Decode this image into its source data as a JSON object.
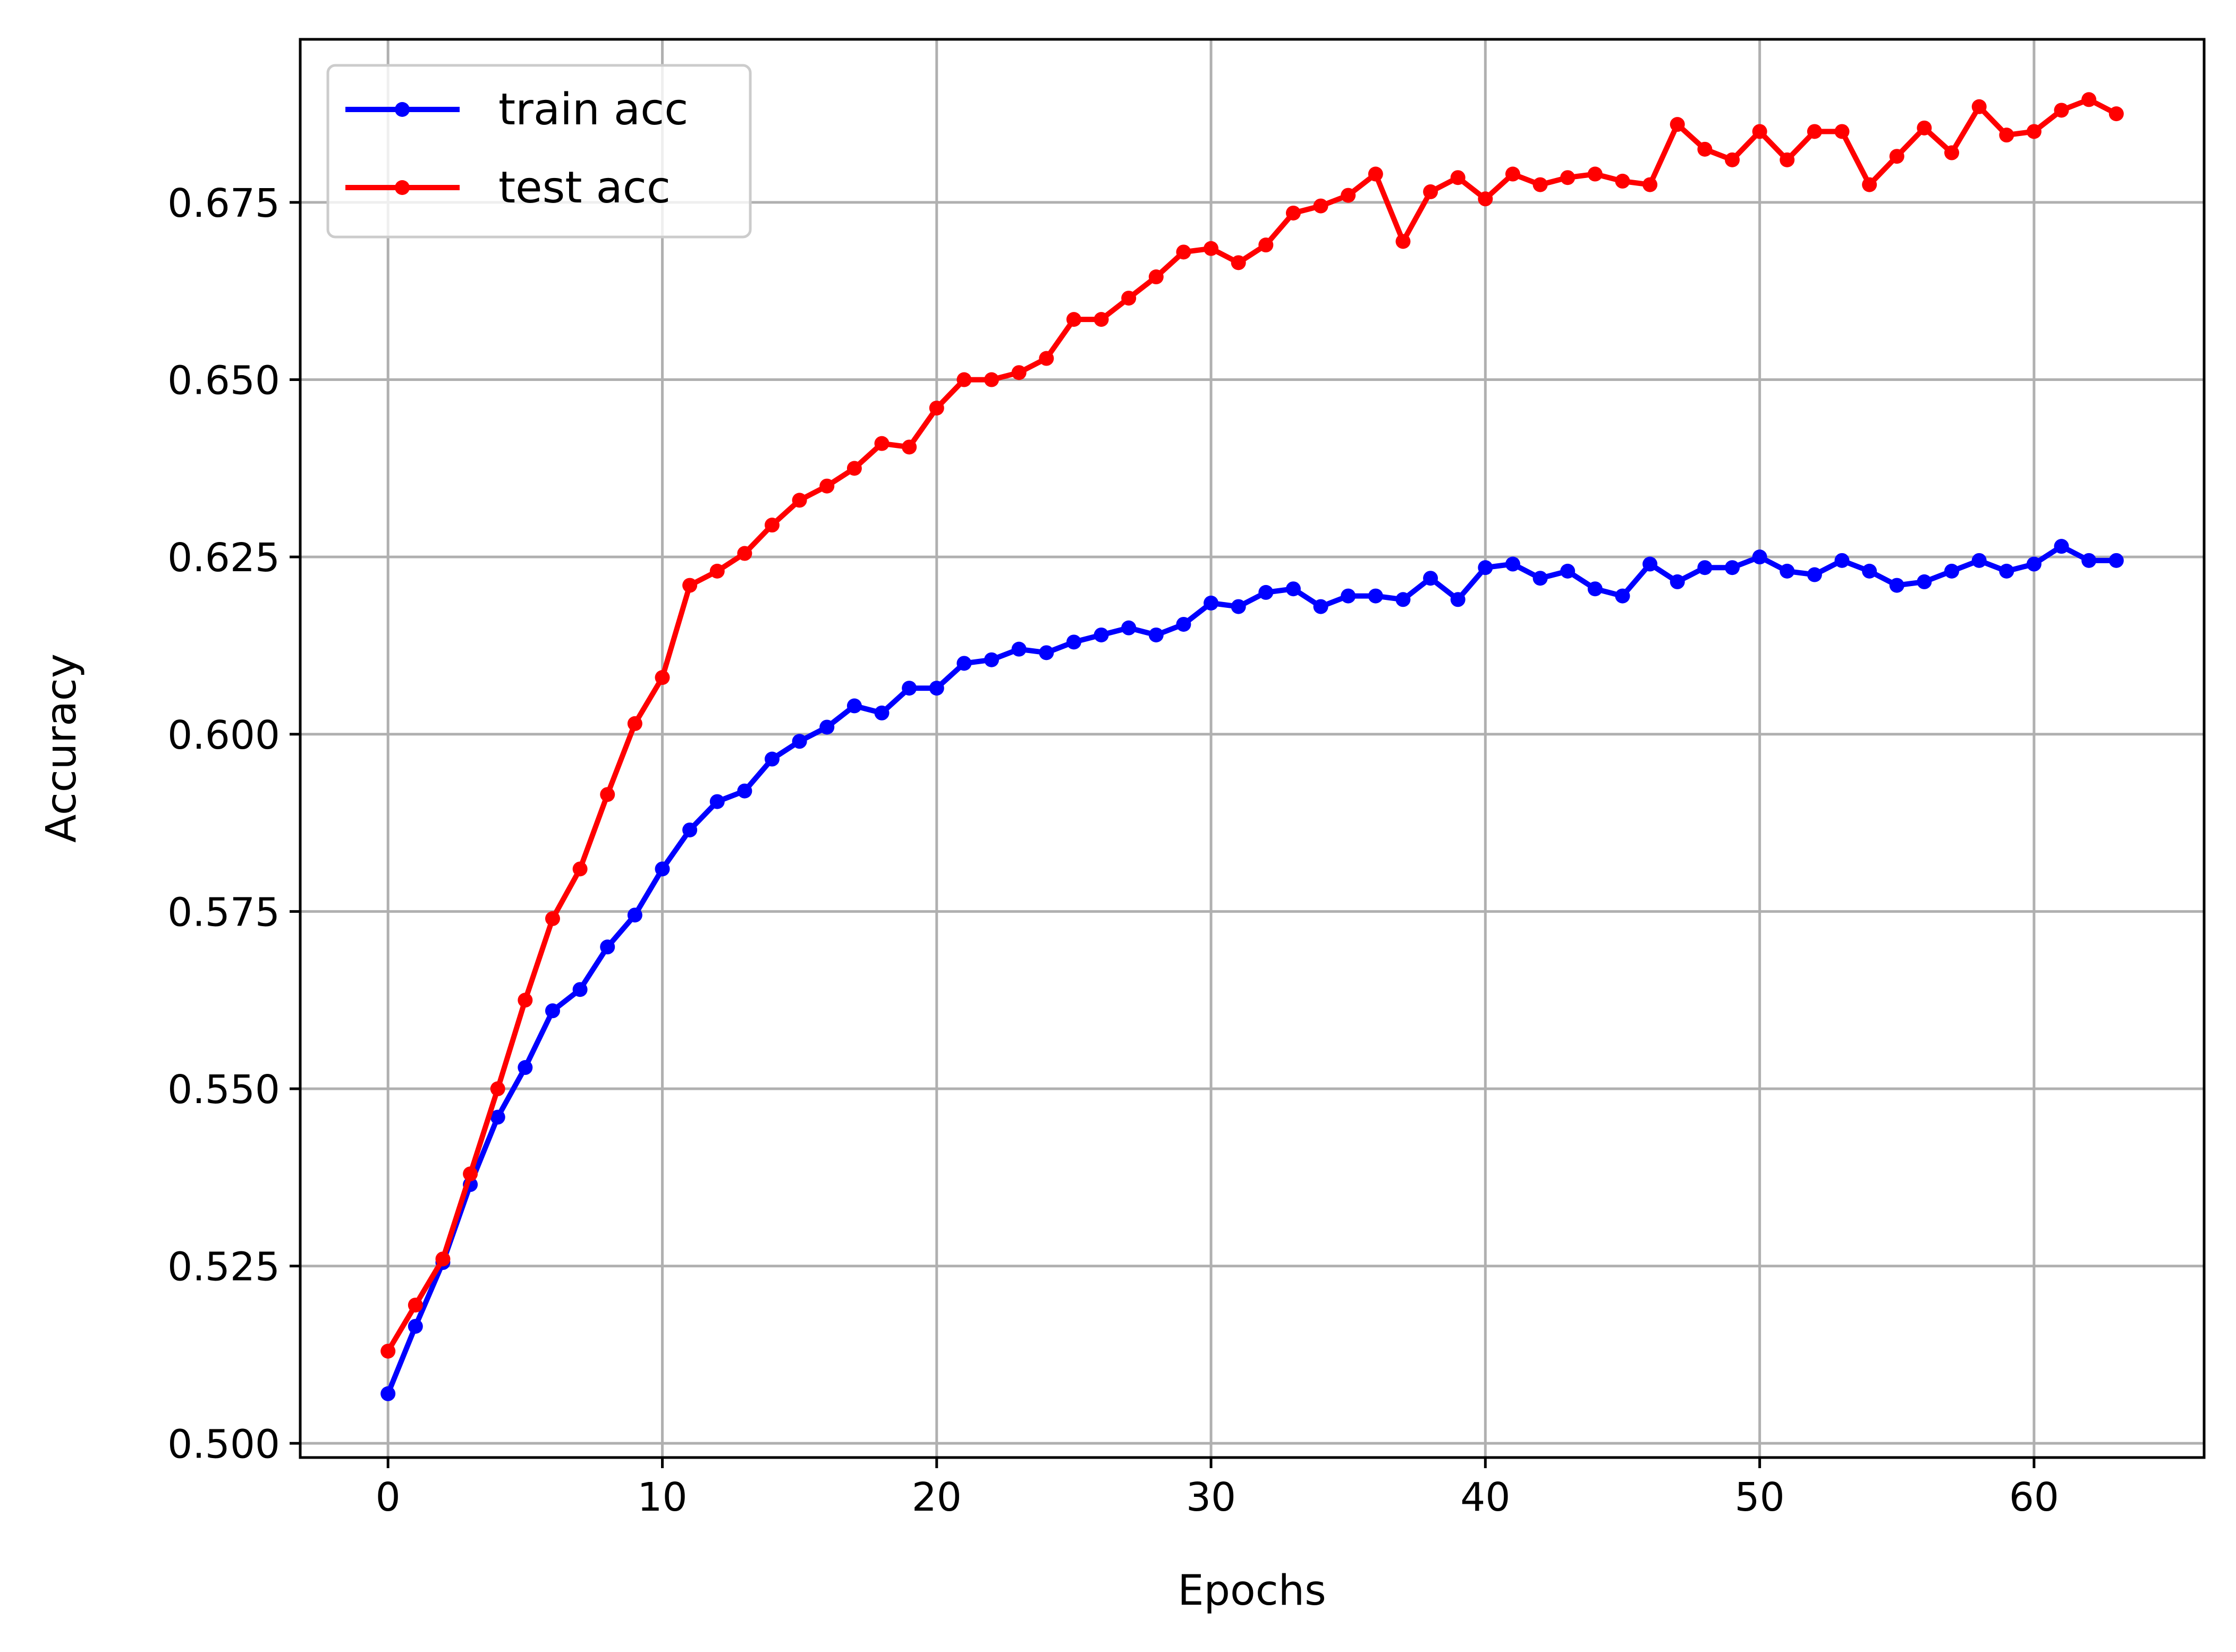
{
  "chart_data": {
    "type": "line",
    "xlabel": "Epochs",
    "ylabel": "Accuracy",
    "xlim": [
      -3.2,
      66.2
    ],
    "ylim": [
      0.498,
      0.698
    ],
    "x_ticks": [
      0,
      10,
      20,
      30,
      40,
      50,
      60
    ],
    "y_ticks": [
      0.5,
      0.525,
      0.55,
      0.575,
      0.6,
      0.625,
      0.65,
      0.675
    ],
    "x_tick_labels": [
      "0",
      "10",
      "20",
      "30",
      "40",
      "50",
      "60"
    ],
    "y_tick_labels": [
      "0.500",
      "0.525",
      "0.550",
      "0.575",
      "0.600",
      "0.625",
      "0.650",
      "0.675"
    ],
    "grid": true,
    "legend_position": "upper-left",
    "x": [
      0,
      1,
      2,
      3,
      4,
      5,
      6,
      7,
      8,
      9,
      10,
      11,
      12,
      13,
      14,
      15,
      16,
      17,
      18,
      19,
      20,
      21,
      22,
      23,
      24,
      25,
      26,
      27,
      28,
      29,
      30,
      31,
      32,
      33,
      34,
      35,
      36,
      37,
      38,
      39,
      40,
      41,
      42,
      43,
      44,
      45,
      46,
      47,
      48,
      49,
      50,
      51,
      52,
      53,
      54,
      55,
      56,
      57,
      58,
      59,
      60,
      61,
      62,
      63
    ],
    "series": [
      {
        "name": "train acc",
        "color": "#0000ff",
        "marker": "circle",
        "values": [
          0.507,
          0.5165,
          0.5255,
          0.5365,
          0.546,
          0.553,
          0.561,
          0.564,
          0.57,
          0.5745,
          0.581,
          0.5865,
          0.5905,
          0.592,
          0.5965,
          0.599,
          0.601,
          0.604,
          0.603,
          0.6065,
          0.6065,
          0.61,
          0.6105,
          0.612,
          0.6115,
          0.613,
          0.614,
          0.615,
          0.614,
          0.6155,
          0.6185,
          0.618,
          0.62,
          0.6205,
          0.618,
          0.6195,
          0.6195,
          0.619,
          0.622,
          0.619,
          0.6235,
          0.624,
          0.622,
          0.623,
          0.6205,
          0.6195,
          0.624,
          0.6215,
          0.6235,
          0.6235,
          0.625,
          0.623,
          0.6225,
          0.6245,
          0.623,
          0.621,
          0.6215,
          0.623,
          0.6245,
          0.623,
          0.624,
          0.6265,
          0.6245,
          0.6245
        ]
      },
      {
        "name": "test acc",
        "color": "#ff0000",
        "marker": "circle",
        "values": [
          0.513,
          0.5195,
          0.526,
          0.538,
          0.55,
          0.5625,
          0.574,
          0.581,
          0.5915,
          0.6015,
          0.608,
          0.621,
          0.623,
          0.6255,
          0.6295,
          0.633,
          0.635,
          0.6375,
          0.641,
          0.6405,
          0.646,
          0.65,
          0.65,
          0.651,
          0.653,
          0.6585,
          0.6585,
          0.6615,
          0.6645,
          0.668,
          0.6685,
          0.6665,
          0.669,
          0.6735,
          0.6745,
          0.676,
          0.679,
          0.6695,
          0.6765,
          0.6785,
          0.6755,
          0.679,
          0.6775,
          0.6785,
          0.679,
          0.678,
          0.6775,
          0.686,
          0.6825,
          0.681,
          0.685,
          0.681,
          0.685,
          0.685,
          0.6775,
          0.6815,
          0.6855,
          0.682,
          0.6885,
          0.6845,
          0.685,
          0.688,
          0.6895,
          0.6875
        ]
      }
    ]
  }
}
